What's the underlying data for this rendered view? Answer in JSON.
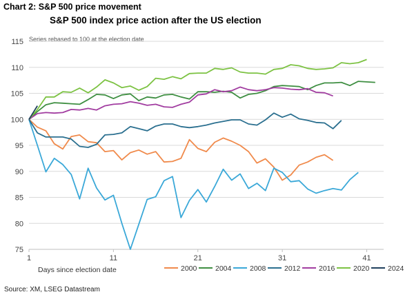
{
  "header": {
    "title": "Chart 2: S&P 500 price movement"
  },
  "chart_data": {
    "type": "line",
    "title": "S&P 500 index price action after the US election",
    "subtitle": "Series rebased to 100 at the election date",
    "xlabel": "Days since election date",
    "ylabel": "",
    "xlim": [
      1,
      43
    ],
    "ylim": [
      75,
      115
    ],
    "x_ticks": [
      1,
      11,
      21,
      31,
      41
    ],
    "y_ticks": [
      75,
      80,
      85,
      90,
      95,
      100,
      105,
      110,
      115
    ],
    "grid": "horizontal",
    "legend_position": "bottom-right",
    "series": [
      {
        "name": "2000",
        "color": "#f08a4b",
        "values": [
          100,
          98.5,
          97.8,
          95.3,
          94.3,
          96.7,
          97.0,
          95.7,
          95.5,
          93.8,
          94.0,
          92.2,
          93.6,
          94.1,
          93.3,
          93.8,
          91.8,
          91.9,
          92.5,
          96.1,
          94.4,
          93.8,
          95.6,
          96.4,
          95.8,
          95.0,
          93.8,
          91.6,
          92.4,
          90.8,
          88.3,
          89.3,
          91.2,
          91.8,
          92.7,
          93.2,
          92.1
        ]
      },
      {
        "name": "2004",
        "color": "#3e8e41",
        "values": [
          100,
          101.5,
          102.8,
          103.2,
          103.1,
          103.0,
          102.9,
          103.8,
          104.8,
          104.7,
          104.0,
          104.7,
          104.9,
          103.6,
          104.3,
          104.1,
          104.7,
          104.8,
          104.3,
          103.9,
          105.3,
          105.3,
          105.2,
          105.4,
          105.2,
          104.1,
          104.8,
          105.0,
          105.5,
          106.3,
          106.5,
          106.4,
          106.3,
          105.7,
          106.5,
          107.0,
          107.0,
          107.1,
          106.5,
          107.3,
          107.2,
          107.1
        ]
      },
      {
        "name": "2008",
        "color": "#3aa8d8",
        "values": [
          100,
          95.0,
          89.9,
          92.5,
          91.3,
          89.4,
          84.7,
          90.6,
          86.8,
          84.5,
          85.4,
          80.0,
          75.0,
          79.8,
          84.6,
          85.1,
          88.2,
          89.0,
          81.1,
          84.4,
          86.5,
          84.1,
          87.1,
          90.4,
          88.3,
          89.5,
          86.7,
          87.7,
          86.3,
          90.6,
          89.8,
          88.0,
          88.2,
          86.6,
          85.8,
          86.3,
          86.7,
          86.4,
          88.4,
          89.8
        ]
      },
      {
        "name": "2012",
        "color": "#2a6f8f",
        "values": [
          100,
          97.4,
          96.6,
          96.6,
          96.6,
          96.2,
          94.8,
          94.6,
          95.2,
          97.0,
          97.1,
          97.4,
          98.6,
          98.2,
          97.8,
          98.7,
          99.1,
          99.1,
          98.6,
          98.4,
          98.6,
          98.9,
          99.3,
          99.6,
          99.9,
          99.9,
          99.1,
          98.9,
          99.9,
          101.2,
          100.4,
          101.0,
          100.1,
          99.8,
          99.4,
          99.3,
          98.2,
          99.8
        ]
      },
      {
        "name": "2016",
        "color": "#a13ca0",
        "values": [
          100,
          101.1,
          101.3,
          101.2,
          101.3,
          101.9,
          101.8,
          102.1,
          101.8,
          102.6,
          102.9,
          103.0,
          103.4,
          103.1,
          102.7,
          102.9,
          102.4,
          102.3,
          102.9,
          103.3,
          104.7,
          104.9,
          105.7,
          105.3,
          105.5,
          106.2,
          105.7,
          105.5,
          105.7,
          106.1,
          106.0,
          105.8,
          105.7,
          105.9,
          105.2,
          105.1,
          104.5
        ]
      },
      {
        "name": "2020",
        "color": "#7cc242",
        "values": [
          100,
          101.9,
          104.3,
          104.3,
          105.3,
          105.2,
          106.0,
          105.1,
          106.2,
          107.6,
          107.0,
          106.1,
          106.4,
          105.6,
          106.3,
          107.9,
          107.7,
          108.2,
          107.8,
          108.8,
          108.9,
          108.9,
          109.8,
          109.6,
          109.9,
          109.1,
          108.9,
          108.9,
          108.7,
          109.6,
          109.8,
          110.5,
          110.3,
          109.8,
          109.6,
          109.7,
          109.9,
          110.9,
          110.7,
          110.9,
          111.5
        ]
      },
      {
        "name": "2024",
        "color": "#1f3f5c",
        "values": [
          100,
          102.6
        ]
      }
    ]
  },
  "source": "Source: XM, LSEG Datastream"
}
